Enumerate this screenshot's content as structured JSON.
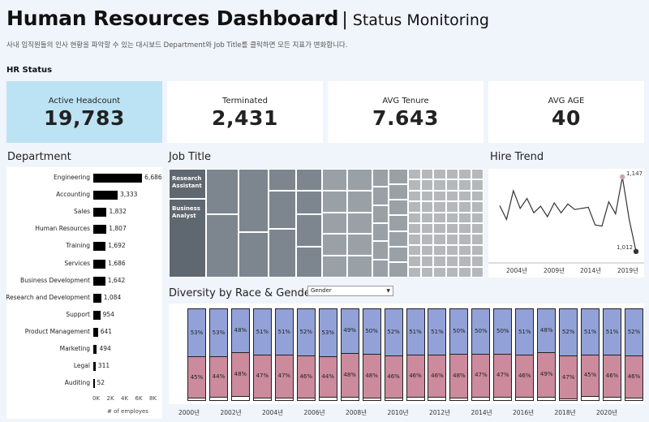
{
  "header": {
    "title": "Human Resources Dashboard",
    "separator": "|",
    "subtitle": "Status Monitoring",
    "description": "사내 임직원들의 인사 현황을 파악할 수 있는 대시보드 Department와 Job Title를 클릭하면 모든 지표가 변화합니다."
  },
  "hr_status": {
    "label": "HR Status",
    "kpis": [
      {
        "label": "Active Headcount",
        "value": "19,783"
      },
      {
        "label": "Terminated",
        "value": "2,431"
      },
      {
        "label": "AVG Tenure",
        "value": "7.643"
      },
      {
        "label": "AVG AGE",
        "value": "40"
      }
    ]
  },
  "department": {
    "title": "Department",
    "axis_ticks": [
      "0K",
      "2K",
      "4K",
      "6K",
      "8K"
    ],
    "axis_title": "# of employes",
    "rows": [
      {
        "name": "Engineering",
        "value": 6686,
        "label": "6,686"
      },
      {
        "name": "Accounting",
        "value": 3333,
        "label": "3,333"
      },
      {
        "name": "Sales",
        "value": 1832,
        "label": "1,832"
      },
      {
        "name": "Human Resources",
        "value": 1807,
        "label": "1,807"
      },
      {
        "name": "Training",
        "value": 1692,
        "label": "1,692"
      },
      {
        "name": "Services",
        "value": 1686,
        "label": "1,686"
      },
      {
        "name": "Business Development",
        "value": 1642,
        "label": "1,642"
      },
      {
        "name": "Research and Development",
        "value": 1084,
        "label": "1,084"
      },
      {
        "name": "Support",
        "value": 954,
        "label": "954"
      },
      {
        "name": "Product Management",
        "value": 641,
        "label": "641"
      },
      {
        "name": "Marketing",
        "value": 494,
        "label": "494"
      },
      {
        "name": "Legal",
        "value": 311,
        "label": "311"
      },
      {
        "name": "Auditing",
        "value": 52,
        "label": "52"
      }
    ]
  },
  "job_title": {
    "title": "Job Title",
    "labels": [
      "Research\nAssistant",
      "Business\nAnalyst"
    ],
    "colors": [
      "#5f6770",
      "#7d868e",
      "#9aa1a6",
      "#b4b8bb",
      "#c8cacb"
    ]
  },
  "hire_trend": {
    "title": "Hire Trend",
    "max_label": "1,147",
    "last_label": "1,012",
    "tick_labels": [
      "2004년",
      "2009년",
      "2014년",
      "2019년"
    ]
  },
  "diversity": {
    "title": "Diversity by Race & Gender",
    "dropdown_value": "Gender",
    "tick_labels": [
      "2000년",
      "2002년",
      "2004년",
      "2006년",
      "2008년",
      "2010년",
      "2012년",
      "2014년",
      "2016년",
      "2018년",
      "2020년"
    ],
    "colors": {
      "top": "#92a2d8",
      "bottom": "#cc8a9d"
    }
  },
  "chart_data": [
    {
      "type": "bar",
      "title": "Department",
      "orientation": "horizontal",
      "categories": [
        "Engineering",
        "Accounting",
        "Sales",
        "Human Resources",
        "Training",
        "Services",
        "Business Development",
        "Research and Development",
        "Support",
        "Product Management",
        "Marketing",
        "Legal",
        "Auditing"
      ],
      "values": [
        6686,
        3333,
        1832,
        1807,
        1692,
        1686,
        1642,
        1084,
        954,
        641,
        494,
        311,
        52
      ],
      "xlabel": "# of employes",
      "xlim": [
        0,
        8000
      ]
    },
    {
      "type": "line",
      "title": "Hire Trend",
      "x": [
        2000,
        2001,
        2002,
        2003,
        2004,
        2005,
        2006,
        2007,
        2008,
        2009,
        2010,
        2011,
        2012,
        2013,
        2014,
        2015,
        2016,
        2017,
        2018,
        2019,
        2020
      ],
      "values": [
        1095,
        1070,
        1122,
        1090,
        1108,
        1082,
        1094,
        1075,
        1100,
        1082,
        1098,
        1088,
        1090,
        1092,
        1060,
        1058,
        1102,
        1080,
        1147,
        1070,
        1012
      ],
      "xlabel": "",
      "ylabel": "",
      "ylim": [
        1000,
        1150
      ],
      "x_ticks": [
        "2004년",
        "2009년",
        "2014년",
        "2019년"
      ]
    },
    {
      "type": "bar",
      "title": "Diversity by Race & Gender",
      "stacked": true,
      "categories": [
        "2000",
        "2001",
        "2002",
        "2003",
        "2004",
        "2005",
        "2006",
        "2007",
        "2008",
        "2009",
        "2010",
        "2011",
        "2012",
        "2013",
        "2014",
        "2015",
        "2016",
        "2017",
        "2018",
        "2019",
        "2020"
      ],
      "series": [
        {
          "name": "top",
          "values": [
            53,
            53,
            48,
            51,
            51,
            52,
            53,
            49,
            50,
            52,
            51,
            51,
            50,
            50,
            50,
            51,
            48,
            52,
            51,
            51,
            52
          ]
        },
        {
          "name": "bottom",
          "values": [
            45,
            44,
            48,
            47,
            47,
            46,
            44,
            48,
            48,
            46,
            46,
            46,
            48,
            47,
            47,
            46,
            49,
            47,
            45,
            46,
            46
          ]
        }
      ],
      "ylim": [
        0,
        100
      ]
    }
  ]
}
